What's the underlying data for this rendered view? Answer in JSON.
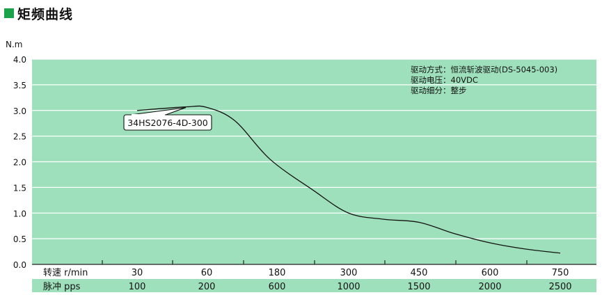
{
  "section": {
    "title": "矩频曲线",
    "accent_color": "#1aa34a"
  },
  "chart_data": {
    "type": "line",
    "ylabel": "N.m",
    "ylim": [
      0,
      4.0
    ],
    "y_ticks": [
      "0.0",
      "0.5",
      "1.0",
      "1.5",
      "2.0",
      "2.5",
      "3.0",
      "3.5",
      "4.0"
    ],
    "grid": true,
    "plot_background": "#9ee0bb",
    "x_rows": [
      {
        "label": "转速 r/min",
        "values": [
          "30",
          "60",
          "180",
          "300",
          "450",
          "600",
          "750"
        ]
      },
      {
        "label": "脉冲 pps",
        "values": [
          "100",
          "200",
          "600",
          "1000",
          "1500",
          "2000",
          "2500"
        ]
      }
    ],
    "series": [
      {
        "name": "34HS2076-4D-300",
        "x_index": [
          0,
          0.7,
          1.0,
          1.4,
          1.9,
          2.5,
          3.0,
          3.5,
          4.0,
          4.5,
          5.0,
          5.5,
          6.0
        ],
        "values": [
          3.0,
          3.07,
          3.06,
          2.8,
          2.05,
          1.45,
          1.0,
          0.88,
          0.82,
          0.6,
          0.42,
          0.3,
          0.22
        ]
      }
    ],
    "annotations": [
      "驱动方式：恒流斩波驱动(DS-5045-003)",
      "驱动电压：40VDC",
      "驱动细分：整步"
    ]
  }
}
